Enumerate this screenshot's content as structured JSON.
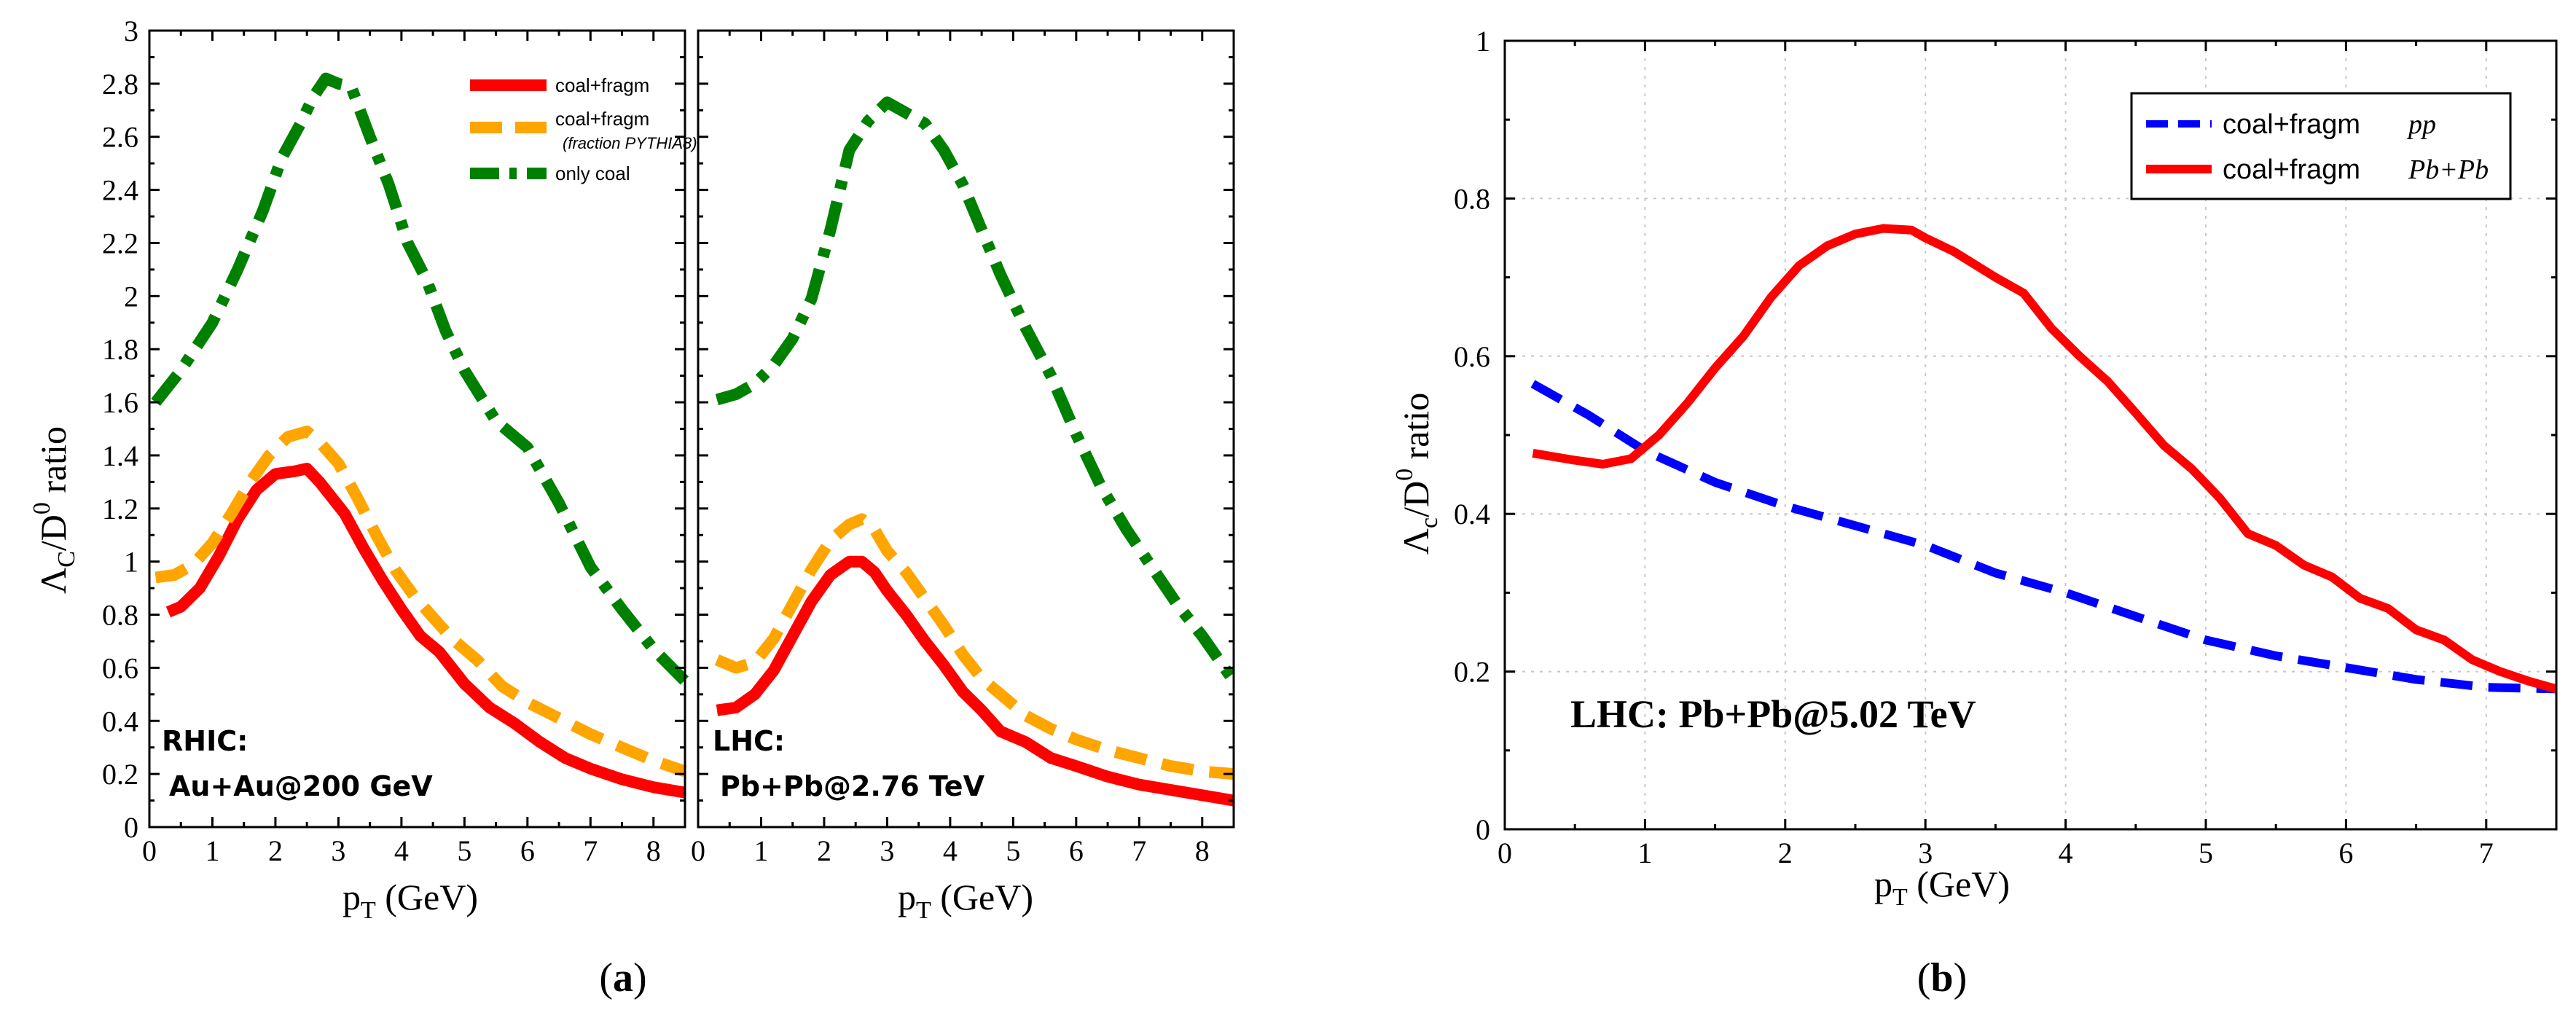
{
  "panel_labels": {
    "a": "a",
    "b": "b"
  },
  "colors": {
    "red": "#ff0000",
    "orange": "#ffa500",
    "green": "#008000",
    "blue": "#0000ff"
  },
  "chart_data": [
    {
      "id": "a-left",
      "type": "line",
      "title": "",
      "xlabel_main": "p",
      "xlabel_sub": "T",
      "xlabel_rest": " (GeV)",
      "ylabel": "Λc/D0 ratio",
      "xlim": [
        0,
        8.5
      ],
      "ylim": [
        0,
        3
      ],
      "xticks": [
        0,
        1,
        2,
        3,
        4,
        5,
        6,
        7,
        8
      ],
      "yticks": [
        0,
        0.2,
        0.4,
        0.6,
        0.8,
        1,
        1.2,
        1.4,
        1.6,
        1.8,
        2,
        2.2,
        2.4,
        2.6,
        2.8,
        3
      ],
      "annotation": [
        "RHIC:",
        "Au+Au@200 GeV"
      ],
      "legend": [
        {
          "name": "coal+fragm",
          "sub": ""
        },
        {
          "name": "coal+fragm",
          "sub": "(fraction PYTHIA8)"
        },
        {
          "name": "only coal",
          "sub": ""
        }
      ],
      "series": [
        {
          "name": "coal+fragm",
          "color": "red",
          "style": "solid",
          "x": [
            0.3,
            0.5,
            0.8,
            1.1,
            1.4,
            1.7,
            2.0,
            2.3,
            2.5,
            2.7,
            2.9,
            3.1,
            3.4,
            3.7,
            4.0,
            4.3,
            4.6,
            5.0,
            5.4,
            5.8,
            6.2,
            6.6,
            7.0,
            7.5,
            8.0,
            8.5
          ],
          "y": [
            0.81,
            0.83,
            0.9,
            1.02,
            1.16,
            1.27,
            1.33,
            1.34,
            1.35,
            1.3,
            1.24,
            1.18,
            1.05,
            0.93,
            0.82,
            0.72,
            0.66,
            0.54,
            0.45,
            0.39,
            0.32,
            0.26,
            0.22,
            0.18,
            0.15,
            0.13
          ]
        },
        {
          "name": "coal+fragm (fraction PYTHIA8)",
          "color": "orange",
          "style": "dash",
          "x": [
            0.1,
            0.4,
            0.7,
            1.0,
            1.3,
            1.6,
            1.9,
            2.2,
            2.5,
            2.7,
            3.0,
            3.3,
            3.6,
            3.9,
            4.2,
            4.5,
            4.8,
            5.2,
            5.6,
            6.0,
            6.5,
            7.0,
            7.5,
            8.0,
            8.5
          ],
          "y": [
            0.94,
            0.95,
            0.99,
            1.07,
            1.18,
            1.3,
            1.4,
            1.47,
            1.49,
            1.45,
            1.37,
            1.24,
            1.1,
            0.97,
            0.87,
            0.79,
            0.71,
            0.63,
            0.53,
            0.47,
            0.41,
            0.35,
            0.3,
            0.25,
            0.21
          ]
        },
        {
          "name": "only coal",
          "color": "green",
          "style": "dashdot",
          "x": [
            0.1,
            0.5,
            1.0,
            1.4,
            1.8,
            2.1,
            2.4,
            2.6,
            2.8,
            3.0,
            3.2,
            3.5,
            3.8,
            4.1,
            4.4,
            4.7,
            5.0,
            5.5,
            6.0,
            6.5,
            7.0,
            7.5,
            8.0,
            8.5
          ],
          "y": [
            1.6,
            1.72,
            1.9,
            2.1,
            2.32,
            2.52,
            2.65,
            2.75,
            2.82,
            2.8,
            2.79,
            2.6,
            2.42,
            2.2,
            2.06,
            1.87,
            1.72,
            1.53,
            1.43,
            1.22,
            0.98,
            0.82,
            0.67,
            0.55
          ]
        }
      ]
    },
    {
      "id": "a-right",
      "type": "line",
      "title": "",
      "xlabel_main": "p",
      "xlabel_sub": "T",
      "xlabel_rest": " (GeV)",
      "ylabel": "",
      "xlim": [
        0,
        8.5
      ],
      "ylim": [
        0,
        3
      ],
      "xticks": [
        0,
        1,
        2,
        3,
        4,
        5,
        6,
        7,
        8
      ],
      "annotation": [
        "LHC:",
        "Pb+Pb@2.76 TeV"
      ],
      "series": [
        {
          "name": "coal+fragm",
          "color": "red",
          "style": "solid",
          "x": [
            0.3,
            0.6,
            0.9,
            1.2,
            1.5,
            1.8,
            2.1,
            2.4,
            2.6,
            2.8,
            3.0,
            3.3,
            3.6,
            3.9,
            4.2,
            4.5,
            4.8,
            5.2,
            5.6,
            6.0,
            6.5,
            7.0,
            7.5,
            8.0,
            8.5
          ],
          "y": [
            0.44,
            0.45,
            0.5,
            0.59,
            0.72,
            0.85,
            0.95,
            1.0,
            1.0,
            0.96,
            0.89,
            0.8,
            0.7,
            0.61,
            0.51,
            0.44,
            0.36,
            0.32,
            0.26,
            0.23,
            0.19,
            0.16,
            0.14,
            0.12,
            0.1
          ]
        },
        {
          "name": "coal+fragm (fraction PYTHIA8)",
          "color": "orange",
          "style": "dash",
          "x": [
            0.3,
            0.6,
            0.9,
            1.2,
            1.5,
            1.8,
            2.1,
            2.4,
            2.6,
            2.8,
            3.0,
            3.3,
            3.6,
            3.9,
            4.2,
            4.5,
            4.8,
            5.2,
            5.6,
            6.0,
            6.5,
            7.0,
            7.5,
            8.0,
            8.5
          ],
          "y": [
            0.63,
            0.6,
            0.62,
            0.71,
            0.84,
            0.97,
            1.08,
            1.14,
            1.16,
            1.12,
            1.04,
            0.96,
            0.86,
            0.76,
            0.65,
            0.56,
            0.5,
            0.42,
            0.37,
            0.33,
            0.29,
            0.26,
            0.23,
            0.21,
            0.2
          ]
        },
        {
          "name": "only coal",
          "color": "green",
          "style": "dashdot",
          "x": [
            0.3,
            0.6,
            0.9,
            1.2,
            1.5,
            1.8,
            2.1,
            2.4,
            2.7,
            3.0,
            3.3,
            3.6,
            3.9,
            4.2,
            4.5,
            4.8,
            5.2,
            5.6,
            6.0,
            6.4,
            6.8,
            7.2,
            7.6,
            8.0,
            8.5
          ],
          "y": [
            1.61,
            1.63,
            1.67,
            1.74,
            1.84,
            1.99,
            2.25,
            2.55,
            2.66,
            2.73,
            2.69,
            2.65,
            2.55,
            2.42,
            2.25,
            2.08,
            1.88,
            1.7,
            1.48,
            1.28,
            1.12,
            0.98,
            0.84,
            0.72,
            0.55
          ]
        }
      ]
    },
    {
      "id": "b",
      "type": "line",
      "title": "",
      "xlabel_main": "p",
      "xlabel_sub": "T",
      "xlabel_rest": " (GeV)",
      "ylabel": "Λc/D0 ratio",
      "xlim": [
        0,
        7.5
      ],
      "ylim": [
        0,
        1
      ],
      "xticks": [
        0,
        1,
        2,
        3,
        4,
        5,
        6,
        7
      ],
      "yticks": [
        0,
        0.2,
        0.4,
        0.6,
        0.8,
        1
      ],
      "grid": true,
      "annotation": [
        "LHC:  Pb+Pb@5.02 TeV"
      ],
      "legend": [
        {
          "name": "coal+fragm",
          "sys": "pp"
        },
        {
          "name": "coal+fragm",
          "sys": "Pb+Pb"
        }
      ],
      "series": [
        {
          "name": "coal+fragm pp",
          "color": "blue",
          "style": "dash",
          "x": [
            0.2,
            0.6,
            1.0,
            1.5,
            2.0,
            2.5,
            3.0,
            3.5,
            4.0,
            4.5,
            5.0,
            5.5,
            6.0,
            6.5,
            7.0,
            7.5
          ],
          "y": [
            0.565,
            0.525,
            0.48,
            0.44,
            0.41,
            0.385,
            0.36,
            0.325,
            0.3,
            0.27,
            0.24,
            0.22,
            0.205,
            0.19,
            0.18,
            0.178
          ]
        },
        {
          "name": "coal+fragm Pb+Pb",
          "color": "red",
          "style": "solid",
          "x": [
            0.2,
            0.5,
            0.7,
            0.9,
            1.1,
            1.3,
            1.5,
            1.7,
            1.9,
            2.1,
            2.3,
            2.5,
            2.7,
            2.9,
            3.0,
            3.2,
            3.5,
            3.7,
            3.9,
            4.1,
            4.3,
            4.5,
            4.7,
            4.9,
            5.1,
            5.3,
            5.5,
            5.7,
            5.9,
            6.1,
            6.3,
            6.5,
            6.7,
            6.9,
            7.1,
            7.3,
            7.5
          ],
          "y": [
            0.477,
            0.468,
            0.463,
            0.47,
            0.5,
            0.54,
            0.585,
            0.625,
            0.675,
            0.715,
            0.74,
            0.755,
            0.762,
            0.76,
            0.75,
            0.733,
            0.7,
            0.68,
            0.635,
            0.6,
            0.568,
            0.528,
            0.487,
            0.457,
            0.42,
            0.375,
            0.36,
            0.335,
            0.32,
            0.293,
            0.28,
            0.253,
            0.24,
            0.215,
            0.2,
            0.188,
            0.178
          ]
        }
      ]
    }
  ]
}
